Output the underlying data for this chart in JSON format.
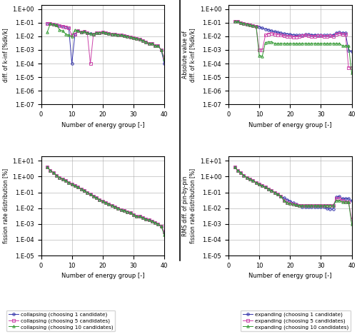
{
  "collapsing_kinf": {
    "c1": {
      "x": [
        2,
        3,
        4,
        5,
        6,
        7,
        8,
        9,
        10,
        11,
        12,
        13,
        14,
        15,
        16,
        17,
        18,
        19,
        20,
        21,
        22,
        23,
        24,
        25,
        26,
        27,
        28,
        29,
        30,
        31,
        32,
        33,
        34,
        35,
        36,
        37,
        38,
        39,
        40
      ],
      "y": [
        0.09,
        0.085,
        0.075,
        0.065,
        0.06,
        0.055,
        0.05,
        0.04,
        0.0001,
        0.015,
        0.025,
        0.02,
        0.022,
        0.018,
        0.016,
        0.015,
        0.018,
        0.019,
        0.02,
        0.018,
        0.016,
        0.015,
        0.014,
        0.013,
        0.012,
        0.011,
        0.01,
        0.009,
        0.008,
        0.007,
        0.006,
        0.005,
        0.004,
        0.003,
        0.003,
        0.002,
        0.002,
        0.001,
        0.0001
      ]
    },
    "c5": {
      "x": [
        2,
        3,
        4,
        5,
        6,
        7,
        8,
        9,
        10,
        11,
        12,
        13,
        14,
        15,
        16,
        17,
        18,
        19,
        20,
        21,
        22,
        23,
        24,
        25,
        26,
        27,
        28,
        29,
        30,
        31,
        32,
        33,
        34,
        35,
        36,
        37,
        38,
        39,
        40
      ],
      "y": [
        0.09,
        0.085,
        0.075,
        0.065,
        0.06,
        0.055,
        0.05,
        0.04,
        0.012,
        0.015,
        0.025,
        0.02,
        0.022,
        0.018,
        0.0001,
        0.015,
        0.018,
        0.019,
        0.02,
        0.018,
        0.016,
        0.015,
        0.014,
        0.013,
        0.012,
        0.011,
        0.01,
        0.009,
        0.008,
        0.007,
        0.006,
        0.005,
        0.004,
        0.003,
        0.003,
        0.002,
        0.002,
        0.001,
        0.0003
      ]
    },
    "c10": {
      "x": [
        2,
        3,
        4,
        5,
        6,
        7,
        8,
        9,
        10,
        11,
        12,
        13,
        14,
        15,
        16,
        17,
        18,
        19,
        20,
        21,
        22,
        23,
        24,
        25,
        26,
        27,
        28,
        29,
        30,
        31,
        32,
        33,
        34,
        35,
        36,
        37,
        38,
        39,
        40
      ],
      "y": [
        0.02,
        0.085,
        0.075,
        0.065,
        0.03,
        0.025,
        0.015,
        0.012,
        0.01,
        0.03,
        0.025,
        0.02,
        0.022,
        0.018,
        0.016,
        0.015,
        0.018,
        0.019,
        0.02,
        0.018,
        0.016,
        0.015,
        0.014,
        0.013,
        0.012,
        0.011,
        0.01,
        0.009,
        0.008,
        0.007,
        0.006,
        0.005,
        0.004,
        0.003,
        0.003,
        0.002,
        0.002,
        0.001,
        0.0002
      ]
    }
  },
  "expanding_kinf": {
    "c1": {
      "x": [
        2,
        3,
        4,
        5,
        6,
        7,
        8,
        9,
        10,
        11,
        12,
        13,
        14,
        15,
        16,
        17,
        18,
        19,
        20,
        21,
        22,
        23,
        24,
        25,
        26,
        27,
        28,
        29,
        30,
        31,
        32,
        33,
        34,
        35,
        36,
        37,
        38,
        39,
        40
      ],
      "y": [
        0.13,
        0.12,
        0.1,
        0.09,
        0.08,
        0.07,
        0.06,
        0.055,
        0.05,
        0.04,
        0.035,
        0.03,
        0.025,
        0.022,
        0.02,
        0.018,
        0.016,
        0.015,
        0.014,
        0.013,
        0.012,
        0.012,
        0.013,
        0.014,
        0.014,
        0.013,
        0.013,
        0.013,
        0.013,
        0.012,
        0.012,
        0.013,
        0.013,
        0.018,
        0.02,
        0.018,
        0.018,
        0.0009,
        0.0008
      ]
    },
    "c5": {
      "x": [
        2,
        3,
        4,
        5,
        6,
        7,
        8,
        9,
        10,
        11,
        12,
        13,
        14,
        15,
        16,
        17,
        18,
        19,
        20,
        21,
        22,
        23,
        24,
        25,
        26,
        27,
        28,
        29,
        30,
        31,
        32,
        33,
        34,
        35,
        36,
        37,
        38,
        39,
        40
      ],
      "y": [
        0.13,
        0.12,
        0.1,
        0.09,
        0.08,
        0.07,
        0.06,
        0.055,
        0.001,
        0.001,
        0.012,
        0.015,
        0.016,
        0.014,
        0.013,
        0.012,
        0.011,
        0.01,
        0.01,
        0.009,
        0.009,
        0.01,
        0.011,
        0.012,
        0.011,
        0.01,
        0.01,
        0.011,
        0.011,
        0.01,
        0.01,
        0.011,
        0.01,
        0.015,
        0.016,
        0.014,
        0.014,
        5e-05,
        5e-05
      ]
    },
    "c10": {
      "x": [
        2,
        3,
        4,
        5,
        6,
        7,
        8,
        9,
        10,
        11,
        12,
        13,
        14,
        15,
        16,
        17,
        18,
        19,
        20,
        21,
        22,
        23,
        24,
        25,
        26,
        27,
        28,
        29,
        30,
        31,
        32,
        33,
        34,
        35,
        36,
        37,
        38,
        39,
        40
      ],
      "y": [
        0.13,
        0.12,
        0.1,
        0.09,
        0.08,
        0.07,
        0.06,
        0.055,
        0.0004,
        0.00035,
        0.0035,
        0.004,
        0.004,
        0.003,
        0.003,
        0.003,
        0.003,
        0.003,
        0.003,
        0.003,
        0.003,
        0.003,
        0.003,
        0.003,
        0.003,
        0.003,
        0.003,
        0.003,
        0.003,
        0.003,
        0.003,
        0.003,
        0.003,
        0.003,
        0.003,
        0.002,
        0.002,
        0.002,
        2e-05
      ]
    }
  },
  "collapsing_rms": {
    "c1": {
      "x": [
        2,
        3,
        4,
        5,
        6,
        7,
        8,
        9,
        10,
        11,
        12,
        13,
        14,
        15,
        16,
        17,
        18,
        19,
        20,
        21,
        22,
        23,
        24,
        25,
        26,
        27,
        28,
        29,
        30,
        31,
        32,
        33,
        34,
        35,
        36,
        37,
        38,
        39,
        40
      ],
      "y": [
        4,
        2.5,
        1.8,
        1.2,
        0.9,
        0.7,
        0.55,
        0.42,
        0.33,
        0.26,
        0.21,
        0.17,
        0.13,
        0.1,
        0.075,
        0.058,
        0.045,
        0.035,
        0.028,
        0.022,
        0.018,
        0.015,
        0.012,
        0.01,
        0.008,
        0.007,
        0.006,
        0.005,
        0.004,
        0.003,
        0.003,
        0.0025,
        0.002,
        0.0018,
        0.0015,
        0.0012,
        0.001,
        0.0007,
        0.0003
      ]
    },
    "c5": {
      "x": [
        2,
        3,
        4,
        5,
        6,
        7,
        8,
        9,
        10,
        11,
        12,
        13,
        14,
        15,
        16,
        17,
        18,
        19,
        20,
        21,
        22,
        23,
        24,
        25,
        26,
        27,
        28,
        29,
        30,
        31,
        32,
        33,
        34,
        35,
        36,
        37,
        38,
        39,
        40
      ],
      "y": [
        4,
        2.5,
        1.8,
        1.2,
        0.9,
        0.7,
        0.55,
        0.42,
        0.33,
        0.26,
        0.21,
        0.17,
        0.13,
        0.1,
        0.075,
        0.058,
        0.045,
        0.035,
        0.028,
        0.022,
        0.018,
        0.015,
        0.012,
        0.01,
        0.008,
        0.007,
        0.006,
        0.005,
        0.004,
        0.003,
        0.003,
        0.0025,
        0.002,
        0.0018,
        0.0015,
        0.0012,
        0.001,
        0.0007,
        0.0003
      ]
    },
    "c10": {
      "x": [
        2,
        3,
        4,
        5,
        6,
        7,
        8,
        9,
        10,
        11,
        12,
        13,
        14,
        15,
        16,
        17,
        18,
        19,
        20,
        21,
        22,
        23,
        24,
        25,
        26,
        27,
        28,
        29,
        30,
        31,
        32,
        33,
        34,
        35,
        36,
        37,
        38,
        39,
        40
      ],
      "y": [
        4,
        2.5,
        1.8,
        1.2,
        0.9,
        0.7,
        0.55,
        0.42,
        0.33,
        0.26,
        0.21,
        0.17,
        0.13,
        0.1,
        0.075,
        0.058,
        0.045,
        0.035,
        0.028,
        0.022,
        0.018,
        0.015,
        0.012,
        0.01,
        0.008,
        0.007,
        0.006,
        0.005,
        0.004,
        0.003,
        0.003,
        0.0025,
        0.002,
        0.0018,
        0.0015,
        0.0012,
        0.001,
        0.0007,
        0.0002
      ]
    }
  },
  "expanding_rms": {
    "c1": {
      "x": [
        2,
        3,
        4,
        5,
        6,
        7,
        8,
        9,
        10,
        11,
        12,
        13,
        14,
        15,
        16,
        17,
        18,
        19,
        20,
        21,
        22,
        23,
        24,
        25,
        26,
        27,
        28,
        29,
        30,
        31,
        32,
        33,
        34,
        35,
        36,
        37,
        38,
        39,
        40
      ],
      "y": [
        4,
        2.5,
        1.8,
        1.2,
        0.9,
        0.7,
        0.55,
        0.42,
        0.33,
        0.26,
        0.21,
        0.17,
        0.13,
        0.1,
        0.075,
        0.058,
        0.045,
        0.035,
        0.028,
        0.022,
        0.018,
        0.015,
        0.012,
        0.012,
        0.012,
        0.012,
        0.012,
        0.012,
        0.012,
        0.012,
        0.01,
        0.009,
        0.009,
        0.05,
        0.055,
        0.04,
        0.04,
        0.04,
        0.03
      ]
    },
    "c5": {
      "x": [
        2,
        3,
        4,
        5,
        6,
        7,
        8,
        9,
        10,
        11,
        12,
        13,
        14,
        15,
        16,
        17,
        18,
        19,
        20,
        21,
        22,
        23,
        24,
        25,
        26,
        27,
        28,
        29,
        30,
        31,
        32,
        33,
        34,
        35,
        36,
        37,
        38,
        39,
        40
      ],
      "y": [
        4,
        2.5,
        1.8,
        1.2,
        0.9,
        0.7,
        0.55,
        0.42,
        0.33,
        0.26,
        0.21,
        0.17,
        0.13,
        0.1,
        0.075,
        0.058,
        0.03,
        0.022,
        0.02,
        0.018,
        0.016,
        0.015,
        0.015,
        0.015,
        0.015,
        0.015,
        0.015,
        0.015,
        0.015,
        0.015,
        0.015,
        0.015,
        0.015,
        0.04,
        0.04,
        0.03,
        0.025,
        0.025,
        0.002
      ]
    },
    "c10": {
      "x": [
        2,
        3,
        4,
        5,
        6,
        7,
        8,
        9,
        10,
        11,
        12,
        13,
        14,
        15,
        16,
        17,
        18,
        19,
        20,
        21,
        22,
        23,
        24,
        25,
        26,
        27,
        28,
        29,
        30,
        31,
        32,
        33,
        34,
        35,
        36,
        37,
        38,
        39,
        40
      ],
      "y": [
        4,
        2.5,
        1.8,
        1.2,
        0.9,
        0.7,
        0.55,
        0.42,
        0.33,
        0.26,
        0.21,
        0.17,
        0.13,
        0.1,
        0.075,
        0.058,
        0.03,
        0.022,
        0.02,
        0.018,
        0.016,
        0.015,
        0.015,
        0.015,
        0.015,
        0.015,
        0.015,
        0.015,
        0.015,
        0.015,
        0.015,
        0.015,
        0.015,
        0.03,
        0.03,
        0.025,
        0.025,
        0.025,
        0.001
      ]
    }
  },
  "colors": {
    "c1": "#3333AA",
    "c5": "#CC44AA",
    "c10": "#339933"
  },
  "markers": {
    "c1": "o",
    "c5": "s",
    "c10": "^"
  },
  "legend_labels_collapse": [
    "collapsing (choosing 1 candidate)",
    "collapsing (choosing 5 candidates)",
    "collapsing (choosing 10 candidates)"
  ],
  "legend_labels_expand": [
    "expanding (choosing 1 candidate)",
    "expanding (choosing 5 candidates)",
    "expanding (choosing 10 candidates)"
  ],
  "xlabel": "Number of energy group [-]",
  "ylabel_kinf": "Absolute value of\ndiff. of k-inf [%dk/k]",
  "ylabel_rms": "RMS diff. of pin-by-pin\nfission rate distribution [%]",
  "xlim": [
    0,
    40
  ],
  "kinf_ylim": [
    1e-07,
    2.0
  ],
  "rms_ylim": [
    1e-05,
    20.0
  ],
  "xticks": [
    0,
    10,
    20,
    30,
    40
  ],
  "kinf_yticks": [
    1e-07,
    1e-06,
    1e-05,
    0.0001,
    0.001,
    0.01,
    0.1,
    1.0
  ],
  "rms_yticks": [
    1e-05,
    0.0001,
    0.001,
    0.01,
    0.1,
    1.0,
    10.0
  ]
}
